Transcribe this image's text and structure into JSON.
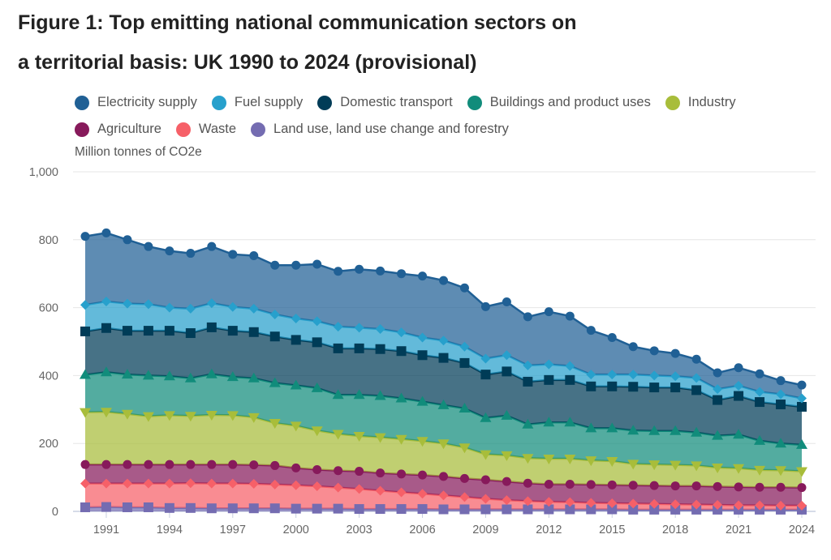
{
  "title_line1": "Figure 1: Top emitting national communication sectors on",
  "title_line2": "a territorial basis: UK 1990 to 2024 (provisional)",
  "chart_data": {
    "type": "area",
    "stacked": true,
    "ylabel": "Million tonnes of CO2e",
    "ylim": [
      0,
      1000
    ],
    "yticks": [
      "0",
      "200",
      "400",
      "600",
      "800",
      "1,000"
    ],
    "xticks": [
      "1991",
      "1994",
      "1997",
      "2000",
      "2003",
      "2006",
      "2009",
      "2012",
      "2015",
      "2018",
      "2021",
      "2024"
    ],
    "grid": true,
    "legend_position": "top",
    "x": [
      1990,
      1991,
      1992,
      1993,
      1994,
      1995,
      1996,
      1997,
      1998,
      1999,
      2000,
      2001,
      2002,
      2003,
      2004,
      2005,
      2006,
      2007,
      2008,
      2009,
      2010,
      2011,
      2012,
      2013,
      2014,
      2015,
      2016,
      2017,
      2018,
      2019,
      2020,
      2021,
      2022,
      2023,
      2024
    ],
    "series": [
      {
        "name": "Land use, land use change and forestry",
        "color": "#746cb1",
        "marker": "square",
        "values": [
          12,
          13,
          12,
          12,
          10,
          10,
          9,
          9,
          9,
          9,
          8,
          8,
          8,
          7,
          7,
          7,
          7,
          6,
          6,
          6,
          6,
          6,
          6,
          6,
          6,
          6,
          5,
          5,
          5,
          5,
          5,
          5,
          5,
          5,
          5
        ]
      },
      {
        "name": "Waste",
        "color": "#f66068",
        "marker": "diamond",
        "values": [
          70,
          69,
          70,
          70,
          72,
          73,
          73,
          73,
          72,
          70,
          69,
          66,
          62,
          59,
          54,
          49,
          45,
          41,
          36,
          31,
          27,
          24,
          22,
          21,
          19,
          18,
          18,
          17,
          16,
          15,
          14,
          13,
          13,
          12,
          12
        ]
      },
      {
        "name": "Agriculture",
        "color": "#871a5b",
        "marker": "circle",
        "values": [
          56,
          56,
          56,
          56,
          56,
          55,
          56,
          56,
          56,
          56,
          51,
          49,
          50,
          52,
          52,
          54,
          55,
          56,
          55,
          56,
          55,
          53,
          52,
          53,
          54,
          54,
          54,
          54,
          54,
          55,
          54,
          54,
          53,
          54,
          53
        ]
      },
      {
        "name": "Industry",
        "color": "#a8bd3a",
        "marker": "triangle-down",
        "values": [
          154,
          155,
          149,
          142,
          145,
          143,
          146,
          145,
          140,
          125,
          124,
          115,
          108,
          104,
          105,
          103,
          100,
          97,
          91,
          75,
          77,
          74,
          75,
          75,
          71,
          70,
          63,
          62,
          62,
          60,
          56,
          55,
          51,
          50,
          48
        ]
      },
      {
        "name": "Buildings and product uses",
        "color": "#118c7b",
        "marker": "triangle-up",
        "values": [
          110,
          117,
          116,
          120,
          115,
          111,
          120,
          113,
          115,
          118,
          119,
          125,
          115,
          121,
          122,
          120,
          116,
          113,
          115,
          107,
          117,
          99,
          107,
          107,
          95,
          97,
          98,
          99,
          100,
          97,
          94,
          99,
          86,
          79,
          78
        ]
      },
      {
        "name": "Domestic transport",
        "color": "#003c57",
        "marker": "square",
        "values": [
          128,
          130,
          129,
          132,
          134,
          133,
          138,
          136,
          136,
          137,
          134,
          135,
          137,
          137,
          138,
          139,
          137,
          139,
          134,
          128,
          130,
          126,
          125,
          125,
          123,
          123,
          129,
          128,
          128,
          125,
          105,
          114,
          114,
          115,
          112
        ]
      },
      {
        "name": "Fuel supply",
        "color": "#27a0cc",
        "marker": "diamond",
        "values": [
          78,
          78,
          80,
          78,
          68,
          72,
          71,
          70,
          69,
          65,
          63,
          62,
          64,
          61,
          59,
          55,
          52,
          51,
          48,
          47,
          48,
          48,
          46,
          41,
          35,
          35,
          36,
          35,
          33,
          36,
          32,
          30,
          30,
          30,
          25
        ]
      },
      {
        "name": "Electricity supply",
        "color": "#206095",
        "marker": "circle",
        "values": [
          202,
          202,
          188,
          170,
          167,
          163,
          167,
          155,
          156,
          145,
          157,
          168,
          163,
          172,
          171,
          173,
          181,
          177,
          173,
          153,
          157,
          143,
          155,
          147,
          130,
          109,
          82,
          73,
          67,
          55,
          48,
          53,
          53,
          40,
          39
        ]
      }
    ]
  },
  "legend_order": [
    [
      7,
      6,
      5,
      4,
      3
    ],
    [
      2,
      1,
      0
    ]
  ]
}
